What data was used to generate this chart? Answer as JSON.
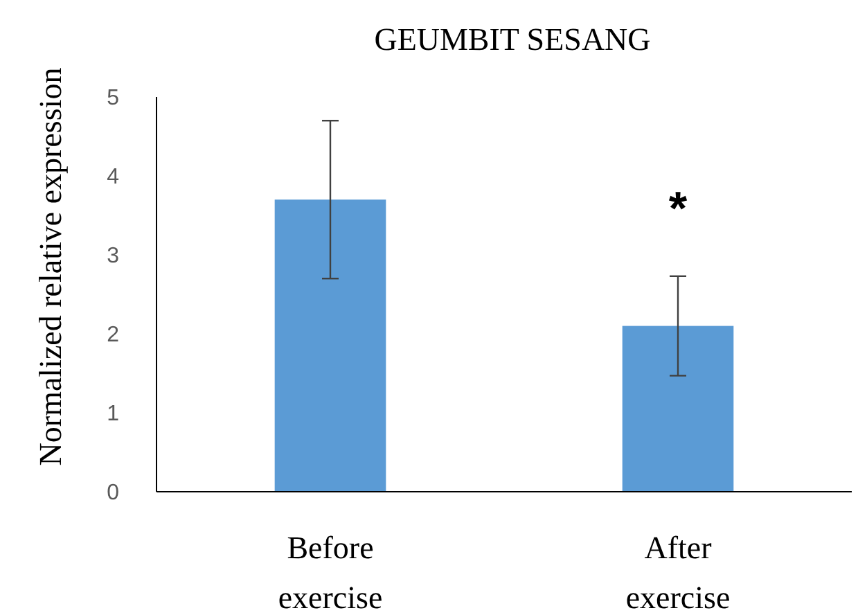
{
  "chart_data": {
    "type": "bar",
    "title": "GEUMBIT SESANG",
    "ylabel": "Normalized relative expression",
    "categories": [
      "Before exercise",
      "After exercise"
    ],
    "values": [
      3.7,
      2.1
    ],
    "color": "#5b9bd5",
    "errors": [
      [
        2.7,
        4.7
      ],
      [
        1.47,
        2.73
      ]
    ],
    "ylim": [
      0,
      5
    ],
    "yticks": [
      0,
      1,
      2,
      3,
      4,
      5
    ],
    "grid": false,
    "annotations": [
      "*"
    ]
  }
}
